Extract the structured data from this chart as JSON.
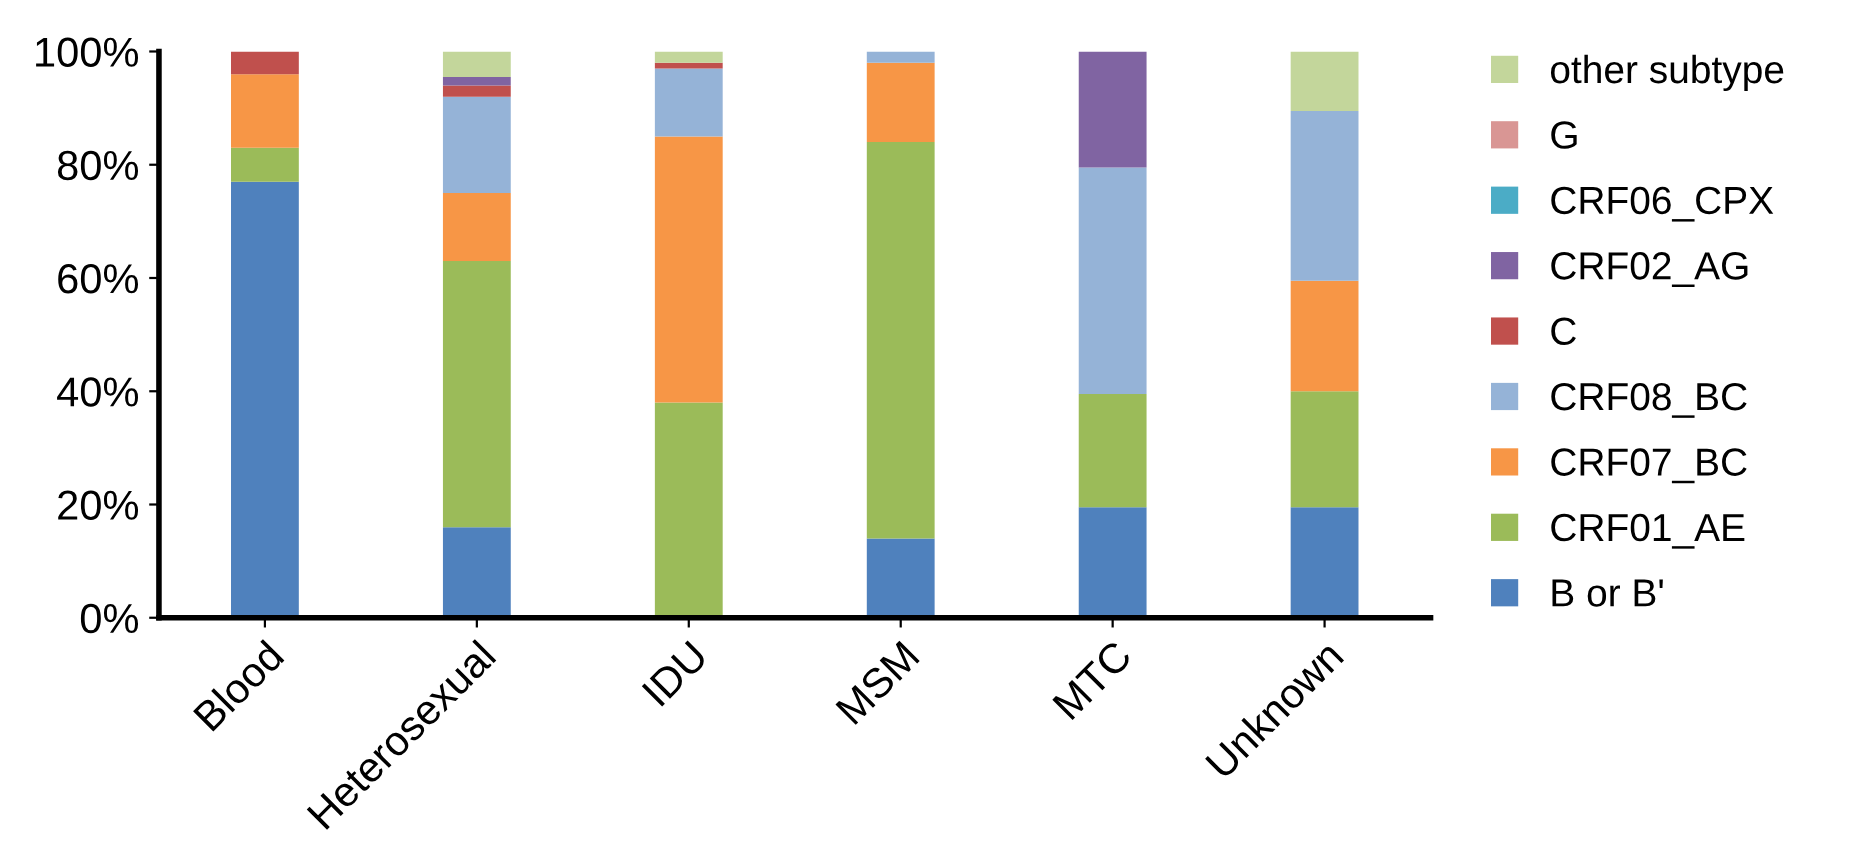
{
  "chart_data": {
    "type": "bar",
    "stacked": true,
    "categories": [
      "Blood",
      "Heterosexual",
      "IDU",
      "MSM",
      "MTC",
      "Unknown"
    ],
    "series": [
      {
        "name": "B or B'",
        "color": "#4f81bd",
        "values": [
          77,
          16,
          0,
          14,
          19.5,
          19.5
        ]
      },
      {
        "name": "CRF01_AE",
        "color": "#9bbb59",
        "values": [
          6,
          47,
          38,
          70,
          20,
          20.5
        ]
      },
      {
        "name": "CRF07_BC",
        "color": "#f79646",
        "values": [
          13,
          12,
          47,
          14,
          0,
          19.5
        ]
      },
      {
        "name": "CRF08_BC",
        "color": "#95b3d7",
        "values": [
          0,
          17,
          12,
          2,
          40,
          30
        ]
      },
      {
        "name": "C",
        "color": "#c0504d",
        "values": [
          4,
          2,
          1,
          0,
          0,
          0
        ]
      },
      {
        "name": "CRF02_AG",
        "color": "#8064a2",
        "values": [
          0,
          1.5,
          0,
          0,
          20.5,
          0
        ]
      },
      {
        "name": "CRF06_CPX",
        "color": "#4bacc6",
        "values": [
          0,
          0,
          0,
          0,
          0,
          0
        ]
      },
      {
        "name": "G",
        "color": "#d99694",
        "values": [
          0,
          0,
          0,
          0,
          0,
          0
        ]
      },
      {
        "name": "other subtype",
        "color": "#c3d69b",
        "values": [
          0,
          4.5,
          2,
          0,
          0,
          10.5
        ]
      }
    ],
    "ylim": [
      0,
      100
    ],
    "yticks": [
      {
        "value": 0,
        "label": "0%"
      },
      {
        "value": 20,
        "label": "20%"
      },
      {
        "value": 40,
        "label": "40%"
      },
      {
        "value": 60,
        "label": "60%"
      },
      {
        "value": 80,
        "label": "80%"
      },
      {
        "value": 100,
        "label": "100%"
      }
    ],
    "grid": false,
    "legend": "right"
  }
}
